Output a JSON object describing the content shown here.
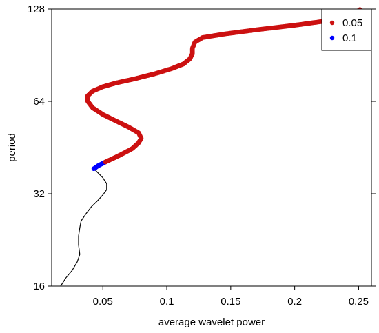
{
  "chart_data": {
    "type": "scatter",
    "xlabel": "average wavelet power",
    "ylabel": "period",
    "xlim": [
      0.01,
      0.26
    ],
    "ylim": [
      16,
      128
    ],
    "y_scale": "log2",
    "x_ticks": [
      0.05,
      0.1,
      0.15,
      0.2,
      0.25
    ],
    "x_tick_labels": [
      "0.05",
      "0.1",
      "0.15",
      "0.2",
      "0.25"
    ],
    "y_ticks": [
      16,
      32,
      64,
      128
    ],
    "y_tick_labels": [
      "16",
      "32",
      "64",
      "128"
    ],
    "grid": false,
    "legend_position": "top-right",
    "line": {
      "color": "#000000",
      "points": [
        [
          0.017,
          16.0
        ],
        [
          0.021,
          17.0
        ],
        [
          0.026,
          18.0
        ],
        [
          0.03,
          19.2
        ],
        [
          0.032,
          20.3
        ],
        [
          0.031,
          21.8
        ],
        [
          0.031,
          23.3
        ],
        [
          0.032,
          24.8
        ],
        [
          0.033,
          26.1
        ],
        [
          0.037,
          27.6
        ],
        [
          0.041,
          29.0
        ],
        [
          0.046,
          30.4
        ],
        [
          0.05,
          31.7
        ],
        [
          0.053,
          33.0
        ],
        [
          0.053,
          34.5
        ],
        [
          0.05,
          36.1
        ],
        [
          0.046,
          37.5
        ],
        [
          0.043,
          38.6
        ]
      ]
    },
    "series": [
      {
        "name": "0.1",
        "color": "#0000ff",
        "points": [
          [
            0.043,
            38.6
          ],
          [
            0.046,
            39.4
          ],
          [
            0.049,
            40.0
          ],
          [
            0.052,
            40.6
          ]
        ]
      },
      {
        "name": "0.05",
        "color": "#cc1111",
        "points": [
          [
            0.052,
            40.6
          ],
          [
            0.058,
            41.7
          ],
          [
            0.065,
            43.1
          ],
          [
            0.073,
            44.9
          ],
          [
            0.078,
            46.9
          ],
          [
            0.08,
            48.5
          ],
          [
            0.078,
            50.5
          ],
          [
            0.07,
            52.8
          ],
          [
            0.06,
            55.3
          ],
          [
            0.05,
            58.0
          ],
          [
            0.042,
            61.0
          ],
          [
            0.038,
            64.2
          ],
          [
            0.038,
            66.6
          ],
          [
            0.042,
            69.1
          ],
          [
            0.05,
            71.4
          ],
          [
            0.06,
            73.4
          ],
          [
            0.075,
            75.8
          ],
          [
            0.09,
            78.6
          ],
          [
            0.103,
            81.6
          ],
          [
            0.113,
            84.7
          ],
          [
            0.118,
            88.0
          ],
          [
            0.12,
            91.4
          ],
          [
            0.12,
            95.3
          ],
          [
            0.122,
            99.8
          ],
          [
            0.128,
            103.3
          ],
          [
            0.145,
            106.1
          ],
          [
            0.17,
            109.5
          ],
          [
            0.2,
            113.3
          ],
          [
            0.225,
            117.1
          ],
          [
            0.242,
            121.4
          ],
          [
            0.248,
            124.5
          ],
          [
            0.251,
            127.5
          ]
        ]
      }
    ]
  }
}
